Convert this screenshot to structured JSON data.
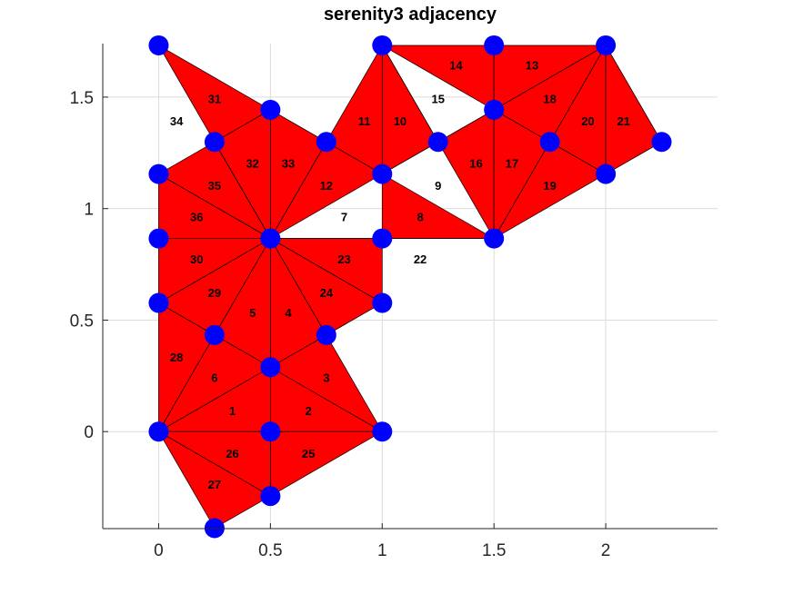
{
  "title": "serenity3 adjacency",
  "colors": {
    "fill": "#ff0000",
    "edge": "#000000",
    "node": "#0000ff",
    "grid": "#dcdcdc",
    "axis": "#262626"
  },
  "chart_data": {
    "type": "mesh",
    "title": "serenity3 adjacency",
    "xlim": [
      -0.25,
      2.5
    ],
    "ylim": [
      -0.435,
      1.74
    ],
    "grid": true,
    "x_ticks": [
      0,
      0.5,
      1,
      1.5,
      2
    ],
    "x_tick_labels": [
      "0",
      "0.5",
      "1",
      "1.5",
      "2"
    ],
    "y_ticks": [
      0,
      0.5,
      1,
      1.5
    ],
    "y_tick_labels": [
      "0",
      "0.5",
      "1",
      "1.5"
    ],
    "nodes": [
      [
        0,
        0
      ],
      [
        0.5,
        0
      ],
      [
        1,
        0
      ],
      [
        0.5,
        0.289
      ],
      [
        0.75,
        0.433
      ],
      [
        0.5,
        0.866
      ],
      [
        0.25,
        0.433
      ],
      [
        0,
        0.577
      ],
      [
        0,
        0.866
      ],
      [
        1,
        0.577
      ],
      [
        1,
        0.866
      ],
      [
        1.5,
        0.866
      ],
      [
        1,
        1.155
      ],
      [
        1.25,
        1.299
      ],
      [
        1,
        1.732
      ],
      [
        0.75,
        1.299
      ],
      [
        1.5,
        1.443
      ],
      [
        1.5,
        1.732
      ],
      [
        2,
        1.732
      ],
      [
        1.75,
        1.299
      ],
      [
        2,
        1.155
      ],
      [
        2.25,
        1.299
      ],
      [
        0.5,
        -0.289
      ],
      [
        0.25,
        -0.433
      ],
      [
        0,
        1.155
      ],
      [
        0.25,
        1.299
      ],
      [
        0.5,
        1.443
      ],
      [
        0,
        1.732
      ]
    ],
    "triangles": [
      [
        0,
        1,
        3
      ],
      [
        1,
        2,
        3
      ],
      [
        2,
        4,
        3
      ],
      [
        4,
        5,
        3
      ],
      [
        5,
        6,
        3
      ],
      [
        6,
        0,
        3
      ],
      [
        5,
        9,
        10
      ],
      [
        10,
        11,
        5
      ],
      [
        10,
        11,
        12
      ],
      [
        12,
        13,
        14
      ],
      [
        12,
        14,
        15
      ],
      [
        5,
        15,
        12
      ],
      [
        14,
        16,
        17
      ],
      [
        17,
        16,
        18
      ],
      [
        16,
        18,
        19
      ],
      [
        13,
        11,
        16
      ],
      [
        11,
        19,
        16
      ],
      [
        18,
        19,
        20
      ],
      [
        11,
        20,
        19
      ],
      [
        18,
        21,
        20
      ],
      [
        18,
        20,
        21
      ],
      [
        5,
        11,
        10
      ],
      [
        5,
        4,
        9
      ],
      [
        5,
        9,
        4
      ],
      [
        1,
        2,
        22
      ],
      [
        0,
        1,
        22
      ],
      [
        0,
        22,
        23
      ],
      [
        0,
        6,
        7
      ],
      [
        6,
        7,
        5
      ],
      [
        7,
        8,
        5
      ],
      [
        27,
        25,
        26
      ],
      [
        25,
        26,
        5
      ],
      [
        26,
        5,
        15
      ],
      [
        26,
        15,
        5
      ],
      [
        24,
        25,
        5
      ],
      [
        24,
        5,
        8
      ]
    ],
    "extra_edges": [
      [
        12,
        13
      ],
      [
        13,
        14
      ],
      [
        13,
        16
      ],
      [
        5,
        26
      ],
      [
        5,
        24
      ],
      [
        5,
        25
      ]
    ],
    "triangle_labels": [
      {
        "label": "1",
        "x": 0.33,
        "y": 0.09
      },
      {
        "label": "2",
        "x": 0.67,
        "y": 0.09
      },
      {
        "label": "3",
        "x": 0.75,
        "y": 0.24
      },
      {
        "label": "4",
        "x": 0.58,
        "y": 0.53
      },
      {
        "label": "5",
        "x": 0.42,
        "y": 0.53
      },
      {
        "label": "6",
        "x": 0.25,
        "y": 0.24
      },
      {
        "label": "7",
        "x": 0.83,
        "y": 0.96
      },
      {
        "label": "8",
        "x": 1.17,
        "y": 0.96
      },
      {
        "label": "9",
        "x": 1.25,
        "y": 1.1
      },
      {
        "label": "10",
        "x": 1.08,
        "y": 1.39
      },
      {
        "label": "11",
        "x": 0.92,
        "y": 1.39
      },
      {
        "label": "12",
        "x": 0.75,
        "y": 1.1
      },
      {
        "label": "13",
        "x": 1.67,
        "y": 1.64
      },
      {
        "label": "14",
        "x": 1.33,
        "y": 1.64
      },
      {
        "label": "15",
        "x": 1.25,
        "y": 1.49
      },
      {
        "label": "16",
        "x": 1.42,
        "y": 1.2
      },
      {
        "label": "17",
        "x": 1.58,
        "y": 1.2
      },
      {
        "label": "18",
        "x": 1.75,
        "y": 1.49
      },
      {
        "label": "19",
        "x": 1.75,
        "y": 1.1
      },
      {
        "label": "20",
        "x": 1.92,
        "y": 1.39
      },
      {
        "label": "21",
        "x": 2.08,
        "y": 1.39
      },
      {
        "label": "22",
        "x": 1.17,
        "y": 0.77
      },
      {
        "label": "23",
        "x": 0.83,
        "y": 0.77
      },
      {
        "label": "24",
        "x": 0.75,
        "y": 0.62
      },
      {
        "label": "25",
        "x": 0.67,
        "y": -0.1
      },
      {
        "label": "26",
        "x": 0.33,
        "y": -0.1
      },
      {
        "label": "27",
        "x": 0.25,
        "y": -0.24
      },
      {
        "label": "28",
        "x": 0.08,
        "y": 0.33
      },
      {
        "label": "29",
        "x": 0.25,
        "y": 0.62
      },
      {
        "label": "30",
        "x": 0.17,
        "y": 0.77
      },
      {
        "label": "31",
        "x": 0.25,
        "y": 1.49
      },
      {
        "label": "32",
        "x": 0.42,
        "y": 1.2
      },
      {
        "label": "33",
        "x": 0.58,
        "y": 1.2
      },
      {
        "label": "34",
        "x": 0.08,
        "y": 1.39
      },
      {
        "label": "35",
        "x": 0.25,
        "y": 1.1
      },
      {
        "label": "36",
        "x": 0.17,
        "y": 0.96
      }
    ]
  }
}
